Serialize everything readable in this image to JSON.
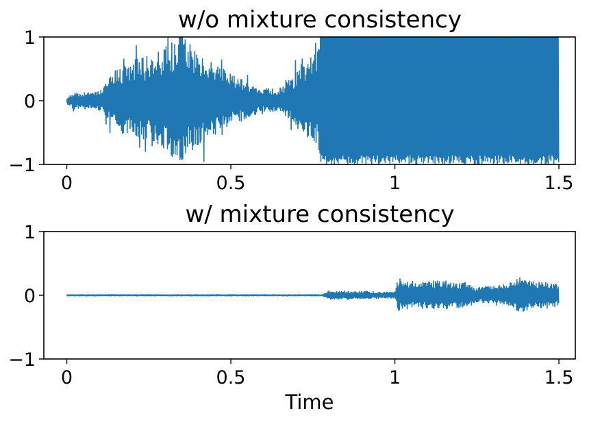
{
  "colors": {
    "waveform": "#1f77b4",
    "axes": "#000000",
    "background": "#ffffff"
  },
  "chart_data": [
    {
      "type": "line",
      "title": "w/o mixture consistency",
      "xlabel": "",
      "ylabel": "",
      "xlim": [
        -0.07,
        1.55
      ],
      "ylim": [
        -1,
        1
      ],
      "x_ticks": [
        0,
        0.5,
        1,
        1.5
      ],
      "x_tick_labels": [
        "0",
        "0.5",
        "1",
        "1.5"
      ],
      "y_ticks": [
        1,
        0,
        -1
      ],
      "y_tick_labels": [
        "1",
        "0",
        "−1"
      ],
      "grid": false,
      "series": [
        {
          "values_envelope": [
            [
              0.0,
              0.05
            ],
            [
              0.02,
              0.14
            ],
            [
              0.05,
              0.13
            ],
            [
              0.1,
              0.16
            ],
            [
              0.15,
              0.5
            ],
            [
              0.2,
              0.65
            ],
            [
              0.25,
              0.7
            ],
            [
              0.3,
              0.85
            ],
            [
              0.35,
              1.0
            ],
            [
              0.4,
              0.8
            ],
            [
              0.45,
              0.6
            ],
            [
              0.5,
              0.42
            ],
            [
              0.55,
              0.3
            ],
            [
              0.6,
              0.2
            ],
            [
              0.65,
              0.18
            ],
            [
              0.7,
              0.45
            ],
            [
              0.75,
              0.85
            ],
            [
              0.775,
              1.0
            ],
            [
              1.5,
              1.0
            ]
          ]
        }
      ]
    },
    {
      "type": "line",
      "title": "w/ mixture consistency",
      "xlabel": "Time",
      "ylabel": "",
      "xlim": [
        -0.07,
        1.55
      ],
      "ylim": [
        -1,
        1
      ],
      "x_ticks": [
        0,
        0.5,
        1,
        1.5
      ],
      "x_tick_labels": [
        "0",
        "0.5",
        "1",
        "1.5"
      ],
      "y_ticks": [
        1,
        0,
        -1
      ],
      "y_tick_labels": [
        "1",
        "0",
        "−1"
      ],
      "grid": false,
      "series": [
        {
          "values_envelope": [
            [
              0.0,
              0.01
            ],
            [
              0.78,
              0.01
            ],
            [
              0.8,
              0.07
            ],
            [
              0.85,
              0.07
            ],
            [
              0.97,
              0.05
            ],
            [
              1.0,
              0.06
            ],
            [
              1.01,
              0.28
            ],
            [
              1.05,
              0.22
            ],
            [
              1.1,
              0.22
            ],
            [
              1.15,
              0.24
            ],
            [
              1.22,
              0.2
            ],
            [
              1.25,
              0.12
            ],
            [
              1.3,
              0.15
            ],
            [
              1.35,
              0.19
            ],
            [
              1.38,
              0.33
            ],
            [
              1.42,
              0.22
            ],
            [
              1.5,
              0.2
            ]
          ]
        }
      ]
    }
  ]
}
